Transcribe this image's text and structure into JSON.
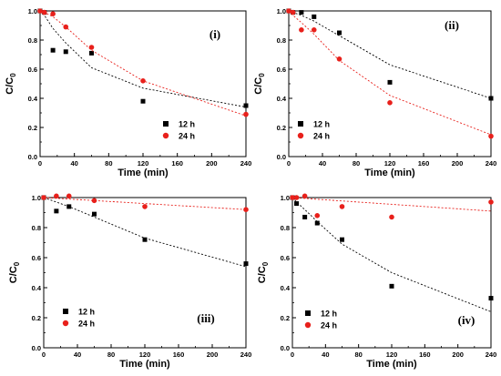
{
  "chart_data": [
    {
      "type": "scatter",
      "panel_label": "(i)",
      "xlabel": "Time (min)",
      "ylabel_main": "C/C",
      "ylabel_sub": "0",
      "xlim": [
        0,
        240
      ],
      "ylim": [
        0,
        1.0
      ],
      "xticks": [
        "0",
        "40",
        "80",
        "120",
        "160",
        "200",
        "240"
      ],
      "yticks": [
        "0.0",
        "0.2",
        "0.4",
        "0.6",
        "0.8",
        "1.0"
      ],
      "legend_position": "bottom-right",
      "series": [
        {
          "name": "12 h",
          "color": "#000000",
          "marker": "square",
          "x": [
            0,
            5,
            15,
            30,
            60,
            120,
            240
          ],
          "y": [
            1.0,
            0.99,
            0.73,
            0.72,
            0.71,
            0.38,
            0.35
          ],
          "fit": {
            "x": [
              0,
              5,
              15,
              30,
              60,
              120,
              240
            ],
            "y": [
              1.0,
              0.97,
              0.88,
              0.78,
              0.61,
              0.47,
              0.34
            ]
          }
        },
        {
          "name": "24 h",
          "color": "#e8201b",
          "marker": "circle",
          "x": [
            0,
            5,
            15,
            30,
            60,
            120,
            240
          ],
          "y": [
            1.0,
            0.99,
            0.98,
            0.89,
            0.75,
            0.52,
            0.29
          ],
          "fit": {
            "x": [
              0,
              5,
              15,
              30,
              60,
              120,
              240
            ],
            "y": [
              1.0,
              0.99,
              0.96,
              0.89,
              0.73,
              0.52,
              0.28
            ]
          }
        }
      ]
    },
    {
      "type": "scatter",
      "panel_label": "(ii)",
      "xlabel": "Time (min)",
      "ylabel_main": "C/C",
      "ylabel_sub": "0",
      "xlim": [
        0,
        240
      ],
      "ylim": [
        0,
        1.0
      ],
      "xticks": [
        "0",
        "40",
        "80",
        "120",
        "160",
        "200",
        "240"
      ],
      "yticks": [
        "0.0",
        "0.2",
        "0.4",
        "0.6",
        "0.8",
        "1.0"
      ],
      "legend_position": "bottom-left",
      "series": [
        {
          "name": "12 h",
          "color": "#000000",
          "marker": "square",
          "x": [
            0,
            5,
            15,
            30,
            60,
            120,
            240
          ],
          "y": [
            1.0,
            0.99,
            0.99,
            0.96,
            0.85,
            0.51,
            0.4
          ],
          "fit": {
            "x": [
              0,
              5,
              15,
              30,
              60,
              120,
              240
            ],
            "y": [
              1.0,
              0.99,
              0.97,
              0.93,
              0.83,
              0.63,
              0.4
            ]
          }
        },
        {
          "name": "24 h",
          "color": "#e8201b",
          "marker": "circle",
          "x": [
            0,
            5,
            15,
            30,
            60,
            120,
            240
          ],
          "y": [
            1.0,
            0.99,
            0.87,
            0.87,
            0.67,
            0.37,
            0.14
          ],
          "fit": {
            "x": [
              0,
              5,
              15,
              30,
              60,
              120,
              240
            ],
            "y": [
              1.0,
              0.97,
              0.92,
              0.84,
              0.66,
              0.42,
              0.15
            ]
          }
        }
      ]
    },
    {
      "type": "scatter",
      "panel_label": "(iii)",
      "xlabel": "Time (min)",
      "ylabel_main": "C/C",
      "ylabel_sub": "0",
      "xlim": [
        0,
        240
      ],
      "ylim": [
        0,
        1.0
      ],
      "xticks": [
        "0",
        "40",
        "80",
        "120",
        "160",
        "200",
        "240"
      ],
      "yticks": [
        "0.0",
        "0.2",
        "0.4",
        "0.6",
        "0.8",
        "1.0"
      ],
      "legend_position": "bottom-left",
      "series": [
        {
          "name": "12 h",
          "color": "#000000",
          "marker": "square",
          "x": [
            0,
            15,
            30,
            60,
            120,
            240
          ],
          "y": [
            1.0,
            0.91,
            0.94,
            0.89,
            0.72,
            0.56
          ],
          "fit": {
            "x": [
              0,
              15,
              30,
              60,
              120,
              240
            ],
            "y": [
              1.0,
              0.97,
              0.94,
              0.87,
              0.73,
              0.54
            ]
          }
        },
        {
          "name": "24 h",
          "color": "#e8201b",
          "marker": "circle",
          "x": [
            0,
            15,
            30,
            60,
            120,
            240
          ],
          "y": [
            1.0,
            1.01,
            1.01,
            0.98,
            0.94,
            0.92
          ],
          "fit": {
            "x": [
              0,
              240
            ],
            "y": [
              1.0,
              0.92
            ]
          }
        }
      ]
    },
    {
      "type": "scatter",
      "panel_label": "(iv)",
      "xlabel": "Time (min)",
      "ylabel_main": "C/C",
      "ylabel_sub": "0",
      "xlim": [
        0,
        240
      ],
      "ylim": [
        0,
        1.0
      ],
      "xticks": [
        "0",
        "40",
        "80",
        "120",
        "160",
        "200",
        "240"
      ],
      "yticks": [
        "0.0",
        "0.2",
        "0.4",
        "0.6",
        "0.8",
        "1.0"
      ],
      "legend_position": "bottom-left",
      "series": [
        {
          "name": "12 h",
          "color": "#000000",
          "marker": "square",
          "x": [
            0,
            5,
            15,
            30,
            60,
            120,
            240
          ],
          "y": [
            1.0,
            0.96,
            0.87,
            0.83,
            0.72,
            0.41,
            0.33
          ],
          "fit": {
            "x": [
              0,
              5,
              15,
              30,
              60,
              120,
              240
            ],
            "y": [
              1.0,
              0.97,
              0.92,
              0.84,
              0.69,
              0.5,
              0.24
            ]
          }
        },
        {
          "name": "24 h",
          "color": "#e8201b",
          "marker": "circle",
          "x": [
            0,
            5,
            15,
            30,
            60,
            120,
            240
          ],
          "y": [
            1.0,
            1.0,
            1.01,
            0.88,
            0.94,
            0.87,
            0.97
          ],
          "fit": {
            "x": [
              0,
              240
            ],
            "y": [
              1.0,
              0.91
            ]
          }
        }
      ]
    }
  ]
}
